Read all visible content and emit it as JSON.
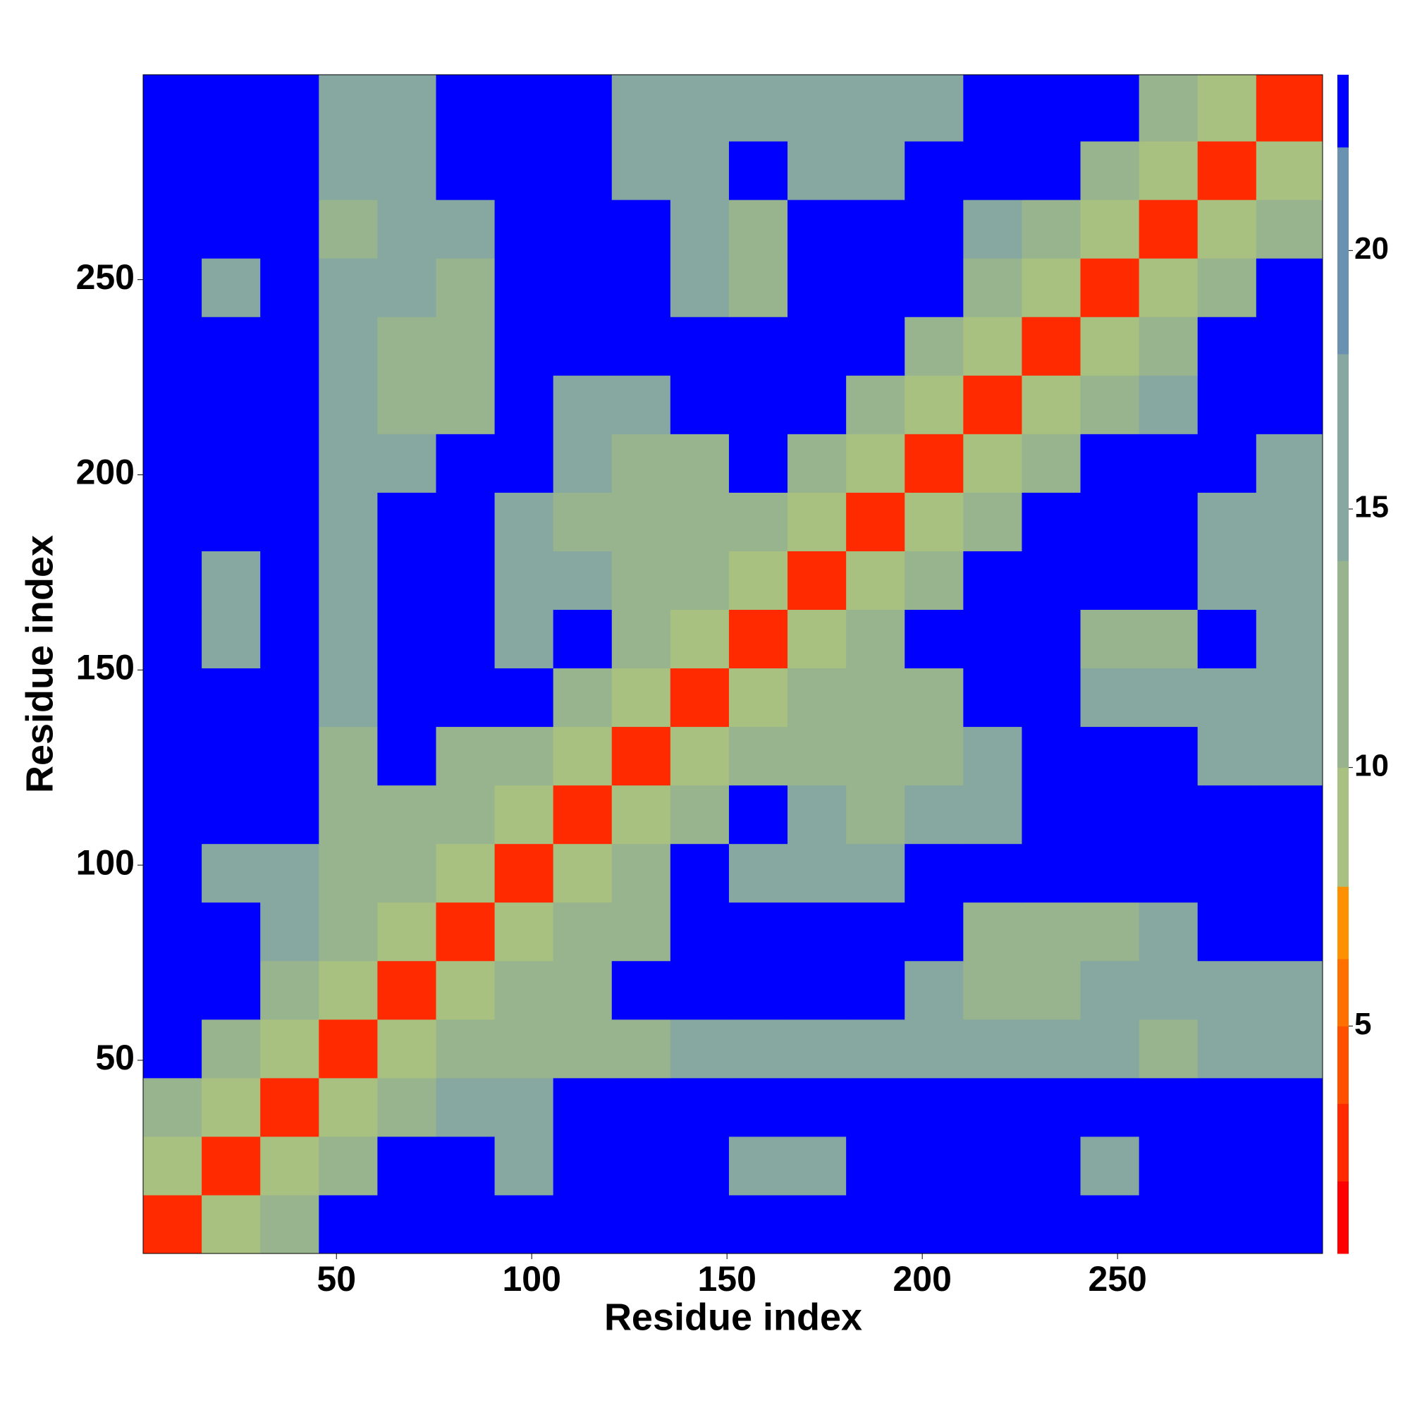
{
  "chart_data": {
    "type": "heatmap",
    "xlabel": "Residue index",
    "ylabel": "Residue index",
    "xlim": [
      0.5,
      302.5
    ],
    "ylim": [
      0.5,
      302.5
    ],
    "xticks": [
      50,
      100,
      150,
      200,
      250
    ],
    "yticks": [
      50,
      100,
      150,
      200,
      250
    ],
    "xbins": [
      0.5,
      15.5,
      30.5,
      45.5,
      60.5,
      75.5,
      90.5,
      105.5,
      120.5,
      135.5,
      150.5,
      165.5,
      180.5,
      195.5,
      210.5,
      225.5,
      240.5,
      255.5,
      270.5,
      285.5,
      302.5
    ],
    "ybins": [
      0.5,
      15.5,
      30.5,
      45.5,
      60.5,
      75.5,
      90.5,
      105.5,
      120.5,
      135.5,
      150.5,
      165.5,
      180.5,
      195.5,
      210.5,
      225.5,
      240.5,
      255.5,
      270.5,
      285.5,
      302.5
    ],
    "z": [
      [
        3,
        10,
        14,
        24,
        24,
        24,
        24,
        24,
        24,
        24,
        24,
        24,
        24,
        24,
        24,
        24,
        24,
        24,
        24,
        24
      ],
      [
        10,
        3,
        10,
        14,
        24,
        24,
        15,
        24,
        24,
        24,
        15,
        16,
        24,
        24,
        24,
        24,
        17,
        24,
        24,
        24
      ],
      [
        14,
        10,
        3,
        10,
        14,
        15,
        15,
        24,
        24,
        24,
        24,
        24,
        24,
        24,
        24,
        24,
        24,
        24,
        24,
        24
      ],
      [
        24,
        14,
        10,
        3,
        10,
        14,
        13,
        13,
        14,
        16,
        16,
        16,
        15,
        15,
        15,
        15,
        15,
        14,
        16,
        17
      ],
      [
        24,
        24,
        14,
        10,
        3,
        10,
        12,
        13,
        24,
        24,
        24,
        24,
        24,
        15,
        14,
        14,
        15,
        15,
        15,
        16
      ],
      [
        24,
        24,
        15,
        14,
        10,
        3,
        10,
        12,
        14,
        24,
        24,
        24,
        24,
        24,
        14,
        13,
        14,
        16,
        24,
        24
      ],
      [
        24,
        15,
        15,
        13,
        12,
        10,
        3,
        10,
        14,
        24,
        16,
        16,
        16,
        24,
        24,
        24,
        24,
        24,
        24,
        24
      ],
      [
        24,
        24,
        24,
        13,
        13,
        12,
        10,
        3,
        10,
        14,
        24,
        15,
        14,
        15,
        16,
        24,
        24,
        24,
        24,
        24
      ],
      [
        24,
        24,
        24,
        14,
        24,
        14,
        14,
        10,
        3,
        10,
        14,
        14,
        13,
        13,
        15,
        24,
        24,
        24,
        16,
        16
      ],
      [
        24,
        24,
        24,
        16,
        24,
        24,
        24,
        14,
        10,
        3,
        10,
        13,
        14,
        14,
        24,
        24,
        15,
        15,
        15,
        16
      ],
      [
        24,
        15,
        24,
        16,
        24,
        24,
        16,
        24,
        14,
        10,
        3,
        10,
        14,
        24,
        24,
        24,
        13,
        14,
        24,
        15
      ],
      [
        24,
        16,
        24,
        16,
        24,
        24,
        16,
        15,
        14,
        13,
        10,
        3,
        10,
        14,
        24,
        24,
        24,
        24,
        15,
        15
      ],
      [
        24,
        24,
        24,
        15,
        24,
        24,
        16,
        14,
        13,
        14,
        14,
        10,
        3,
        10,
        14,
        24,
        24,
        24,
        15,
        15
      ],
      [
        24,
        24,
        24,
        15,
        15,
        24,
        24,
        15,
        13,
        14,
        24,
        14,
        10,
        3,
        10,
        14,
        24,
        24,
        24,
        16
      ],
      [
        24,
        24,
        24,
        15,
        14,
        14,
        24,
        16,
        15,
        24,
        24,
        24,
        14,
        10,
        3,
        10,
        14,
        16,
        24,
        24
      ],
      [
        24,
        24,
        24,
        15,
        14,
        13,
        24,
        24,
        24,
        24,
        24,
        24,
        24,
        14,
        10,
        3,
        10,
        13,
        24,
        24
      ],
      [
        24,
        17,
        24,
        15,
        15,
        14,
        24,
        24,
        24,
        15,
        13,
        24,
        24,
        24,
        14,
        10,
        3,
        10,
        14,
        24
      ],
      [
        24,
        24,
        24,
        14,
        15,
        16,
        24,
        24,
        24,
        15,
        14,
        24,
        24,
        24,
        16,
        13,
        10,
        3,
        10,
        13
      ],
      [
        24,
        24,
        24,
        16,
        15,
        24,
        24,
        24,
        16,
        15,
        24,
        15,
        15,
        24,
        24,
        24,
        14,
        10,
        3,
        10
      ],
      [
        24,
        24,
        24,
        17,
        16,
        24,
        24,
        24,
        16,
        16,
        15,
        15,
        15,
        16,
        24,
        24,
        24,
        13,
        10,
        3
      ]
    ],
    "zlim": [
      0.6,
      23.4
    ],
    "zticks": [
      5,
      10,
      15,
      20
    ],
    "levels": [
      {
        "to": 2,
        "color": "#ff0000"
      },
      {
        "to": 3.5,
        "color": "#ff2a00"
      },
      {
        "to": 5,
        "color": "#ff5000"
      },
      {
        "to": 6.3,
        "color": "#ff7000"
      },
      {
        "to": 7.7,
        "color": "#ff9000"
      },
      {
        "to": 10,
        "color": "#a8c080"
      },
      {
        "to": 14,
        "color": "#98b48e"
      },
      {
        "to": 18,
        "color": "#86a8a0"
      },
      {
        "to": 22,
        "color": "#6a92b0"
      },
      {
        "to": 23.4,
        "color": "#0000ff"
      }
    ]
  }
}
